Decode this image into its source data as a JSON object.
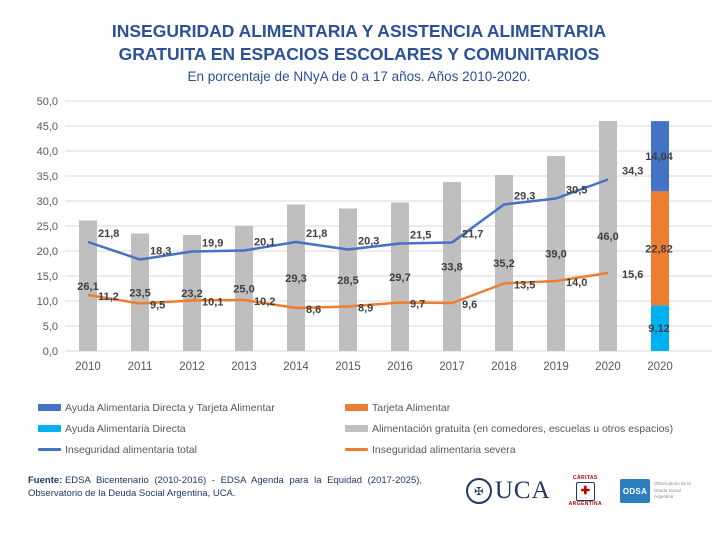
{
  "title": {
    "line1": "INSEGURIDAD ALIMENTARIA Y ASISTENCIA ALIMENTARIA",
    "line2": "GRATUITA EN ESPACIOS ESCOLARES Y COMUNITARIOS"
  },
  "subtitle": "En porcentaje de NNyA de 0 a 17 años. Años 2010-2020.",
  "chart_data": {
    "type": "combo-bar-line",
    "categories": [
      "2010",
      "2011",
      "2012",
      "2013",
      "2014",
      "2015",
      "2016",
      "2017",
      "2018",
      "2019",
      "2020",
      "2020"
    ],
    "y_axis": {
      "min": 0,
      "max": 50,
      "step": 5,
      "tick_labels": [
        "0,0",
        "5,0",
        "10,0",
        "15,0",
        "20,0",
        "25,0",
        "30,0",
        "35,0",
        "40,0",
        "45,0",
        "50,0"
      ]
    },
    "grid": true,
    "bar_series": {
      "name": "Alimentación gratuita (en comedores, escuelas u otros espacios)",
      "color": "#BFBFBF",
      "values": [
        26.1,
        23.5,
        23.2,
        25.0,
        29.3,
        28.5,
        29.7,
        33.8,
        35.2,
        39.0,
        46.0,
        null
      ],
      "labels": [
        "26,1",
        "23,5",
        "23,2",
        "25,0",
        "29,3",
        "28,5",
        "29,7",
        "33,8",
        "35,2",
        "39,0",
        "46,0"
      ]
    },
    "line_series": [
      {
        "name": "Inseguridad alimentaria total",
        "color": "#4472C4",
        "values": [
          21.8,
          18.3,
          19.9,
          20.1,
          21.8,
          20.3,
          21.5,
          21.7,
          29.3,
          30.5,
          34.3,
          null
        ],
        "labels": [
          "21,8",
          "18,3",
          "19,9",
          "20,1",
          "21,8",
          "20,3",
          "21,5",
          "21,7",
          "29,3",
          "30,5",
          "34,3"
        ]
      },
      {
        "name": "Inseguridad alimentaria severa",
        "color": "#ED7D31",
        "values": [
          11.2,
          9.5,
          10.1,
          10.2,
          8.6,
          8.9,
          9.7,
          9.6,
          13.5,
          14.0,
          15.6,
          null
        ],
        "labels": [
          "11,2",
          "9,5",
          "10,1",
          "10,2",
          "8,6",
          "8,9",
          "9,7",
          "9,6",
          "13,5",
          "14,0",
          "15,6"
        ]
      }
    ],
    "stacked_bar": {
      "category": "2020",
      "category_index": 11,
      "segments": [
        {
          "name": "Ayuda Alimentaria Directa",
          "color": "#00B0F0",
          "value": 9.12,
          "label": "9,12"
        },
        {
          "name": "Tarjeta Alimentar",
          "color": "#ED7D31",
          "value": 22.82,
          "label": "22,82"
        },
        {
          "name": "Ayuda Alimentaria Directa y Tarjeta Alimentar",
          "color": "#4472C4",
          "value": 14.04,
          "label": "14,04"
        }
      ]
    },
    "label_color": "#404040",
    "axis_color": "#595959",
    "gridline_color": "#D9D9D9"
  },
  "legend": {
    "items": [
      {
        "label": "Ayuda Alimentaria Directa y Tarjeta Alimentar",
        "color": "#4472C4",
        "swatch": "bar"
      },
      {
        "label": "Tarjeta Alimentar",
        "color": "#ED7D31",
        "swatch": "bar"
      },
      {
        "label": "Ayuda Alimentaria Directa",
        "color": "#00B0F0",
        "swatch": "bar"
      },
      {
        "label": "Alimentación gratuita (en comedores, escuelas u otros espacios)",
        "color": "#BFBFBF",
        "swatch": "bar"
      },
      {
        "label": "Inseguridad alimentaria total",
        "color": "#4472C4",
        "swatch": "line"
      },
      {
        "label": "Inseguridad alimentaria severa",
        "color": "#ED7D31",
        "swatch": "line"
      }
    ]
  },
  "footer": {
    "source_bold": "Fuente:",
    "source_line1": "EDSA Bicentenario (2010-2016) - EDSA Agenda para la Equidad (2017-2025),",
    "source_line2": "Observatorio de la Deuda Social Argentina, UCA.",
    "logos": {
      "uca": "UCA",
      "caritas_top": "CÁRITAS",
      "caritas_bottom": "ARGENTINA",
      "odsa": "ODSA",
      "odsa_text": "Observatorio de la Deuda Social Argentina"
    }
  }
}
